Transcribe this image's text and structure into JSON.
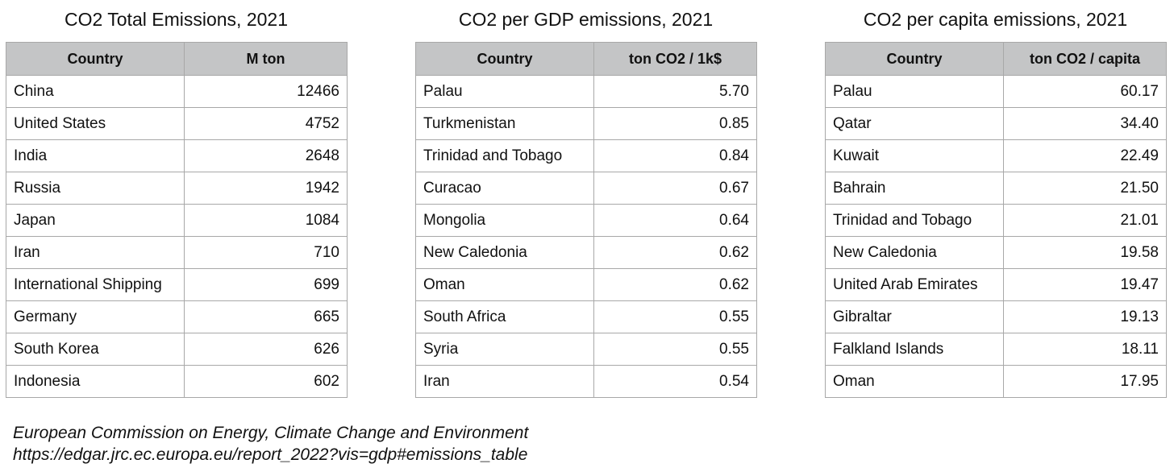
{
  "tables": [
    {
      "title": "CO2 Total Emissions, 2021",
      "headers": [
        "Country",
        "M ton"
      ],
      "rows": [
        [
          "China",
          "12466"
        ],
        [
          "United States",
          "4752"
        ],
        [
          "India",
          "2648"
        ],
        [
          "Russia",
          "1942"
        ],
        [
          "Japan",
          "1084"
        ],
        [
          "Iran",
          "710"
        ],
        [
          "International Shipping",
          "699"
        ],
        [
          "Germany",
          "665"
        ],
        [
          "South Korea",
          "626"
        ],
        [
          "Indonesia",
          "602"
        ]
      ]
    },
    {
      "title": "CO2 per GDP emissions, 2021",
      "headers": [
        "Country",
        "ton CO2 / 1k$"
      ],
      "rows": [
        [
          "Palau",
          "5.70"
        ],
        [
          "Turkmenistan",
          "0.85"
        ],
        [
          "Trinidad and Tobago",
          "0.84"
        ],
        [
          "Curacao",
          "0.67"
        ],
        [
          "Mongolia",
          "0.64"
        ],
        [
          "New Caledonia",
          "0.62"
        ],
        [
          "Oman",
          "0.62"
        ],
        [
          "South Africa",
          "0.55"
        ],
        [
          "Syria",
          "0.55"
        ],
        [
          "Iran",
          "0.54"
        ]
      ]
    },
    {
      "title": "CO2 per capita emissions, 2021",
      "headers": [
        "Country",
        "ton CO2 / capita"
      ],
      "rows": [
        [
          "Palau",
          "60.17"
        ],
        [
          "Qatar",
          "34.40"
        ],
        [
          "Kuwait",
          "22.49"
        ],
        [
          "Bahrain",
          "21.50"
        ],
        [
          "Trinidad and Tobago",
          "21.01"
        ],
        [
          "New Caledonia",
          "19.58"
        ],
        [
          "United Arab Emirates",
          "19.47"
        ],
        [
          "Gibraltar",
          "19.13"
        ],
        [
          "Falkland Islands",
          "18.11"
        ],
        [
          "Oman",
          "17.95"
        ]
      ]
    }
  ],
  "source": {
    "line1": "European Commission on Energy, Climate Change and Environment",
    "line2": "https://edgar.jrc.ec.europa.eu/report_2022?vis=gdp#emissions_table"
  },
  "colors": {
    "header_bg": "#c4c5c6",
    "border": "#a8a8a8",
    "text": "#111111"
  }
}
